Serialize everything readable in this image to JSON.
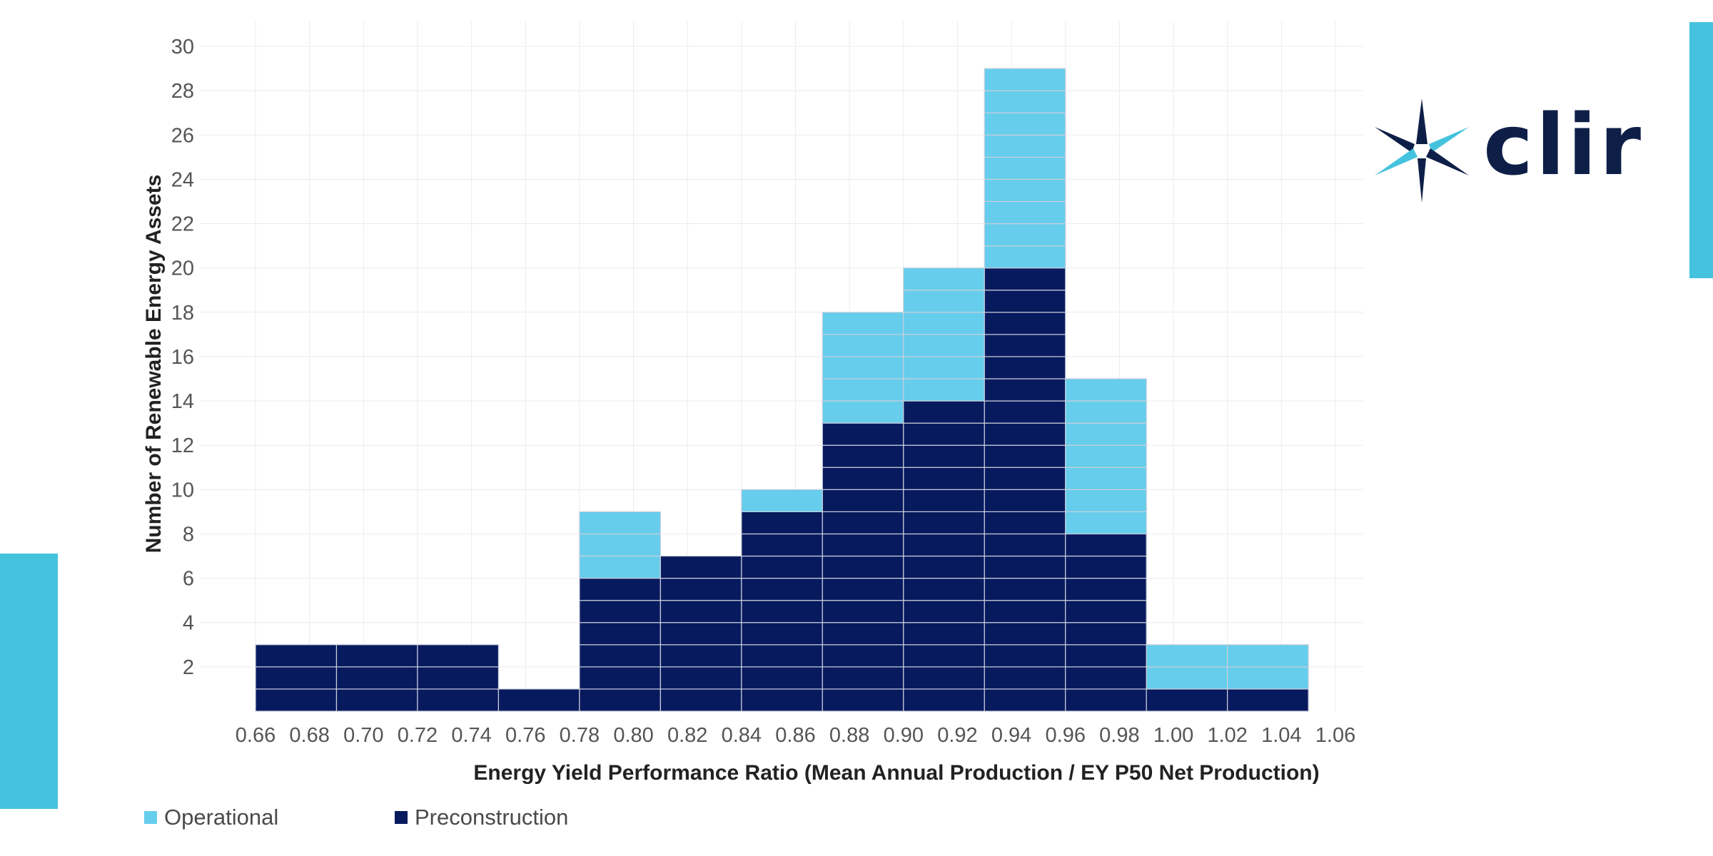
{
  "colors": {
    "accent": "#45c3de",
    "operational": "#66cdec",
    "preconstruction": "#081a5e",
    "grid": "#ececec",
    "cell_border": "#c9cfdc"
  },
  "logo": {
    "text": "clir",
    "icon": "wind-turbine-star-icon"
  },
  "legend": {
    "operational_label": "Operational",
    "preconstruction_label": "Preconstruction"
  },
  "chart_data": {
    "type": "bar",
    "stacked": true,
    "grid": true,
    "legend_position": "bottom-left",
    "xlabel": "Energy Yield Performance Ratio (Mean Annual Production / EY P50 Net Production)",
    "ylabel": "Number of Renewable Energy Assets",
    "ylim": [
      0,
      30
    ],
    "xlim": [
      0.66,
      1.06
    ],
    "bin_width": 0.03,
    "bin_starts": [
      0.66,
      0.69,
      0.72,
      0.75,
      0.78,
      0.81,
      0.84,
      0.87,
      0.9,
      0.93,
      0.96,
      0.99,
      1.02
    ],
    "x_tick_labels": [
      "0.66",
      "0.68",
      "0.70",
      "0.72",
      "0.74",
      "0.76",
      "0.78",
      "0.80",
      "0.82",
      "0.84",
      "0.86",
      "0.88",
      "0.90",
      "0.92",
      "0.94",
      "0.96",
      "0.98",
      "1.00",
      "1.02",
      "1.04",
      "1.06"
    ],
    "y_tick_labels": [
      "2",
      "4",
      "6",
      "8",
      "10",
      "12",
      "14",
      "16",
      "18",
      "20",
      "22",
      "24",
      "26",
      "28",
      "30"
    ],
    "series": [
      {
        "name": "Preconstruction",
        "values": [
          3,
          3,
          3,
          1,
          6,
          7,
          9,
          13,
          14,
          20,
          8,
          1,
          1
        ]
      },
      {
        "name": "Operational",
        "values": [
          0,
          0,
          0,
          0,
          3,
          0,
          1,
          5,
          6,
          9,
          7,
          2,
          2
        ]
      }
    ]
  }
}
